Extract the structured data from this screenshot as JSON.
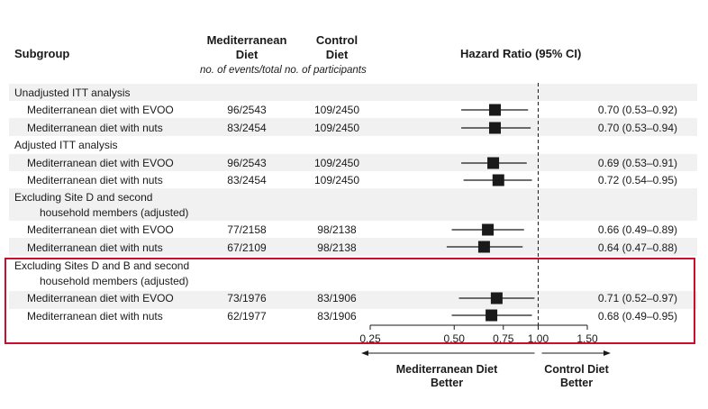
{
  "header": {
    "subgroup": "Subgroup",
    "med_line1": "Mediterranean",
    "med_line2": "Diet",
    "ctrl_line1": "Control",
    "ctrl_line2": "Diet",
    "hr_title": "Hazard Ratio (95% CI)",
    "subnote": "no. of events/total no. of participants"
  },
  "groups": [
    {
      "label_lines": [
        "Unadjusted ITT analysis"
      ]
    },
    {
      "label_lines": [
        "Adjusted ITT analysis"
      ]
    },
    {
      "label_lines": [
        "Excluding Site D and second",
        "household members (adjusted)"
      ]
    },
    {
      "label_lines": [
        "Excluding Sites D and B and second",
        "household members (adjusted)"
      ]
    }
  ],
  "rows": [
    {
      "label": "Mediterranean diet with EVOO",
      "med": "96/2543",
      "ctrl": "109/2450",
      "hr_text": "0.70 (0.53–0.92)"
    },
    {
      "label": "Mediterranean diet with nuts",
      "med": "83/2454",
      "ctrl": "109/2450",
      "hr_text": "0.70 (0.53–0.94)"
    },
    {
      "label": "Mediterranean diet with EVOO",
      "med": "96/2543",
      "ctrl": "109/2450",
      "hr_text": "0.69 (0.53–0.91)"
    },
    {
      "label": "Mediterranean diet with nuts",
      "med": "83/2454",
      "ctrl": "109/2450",
      "hr_text": "0.72 (0.54–0.95)"
    },
    {
      "label": "Mediterranean diet with EVOO",
      "med": "77/2158",
      "ctrl": "98/2138",
      "hr_text": "0.66 (0.49–0.89)"
    },
    {
      "label": "Mediterranean diet with nuts",
      "med": "67/2109",
      "ctrl": "98/2138",
      "hr_text": "0.64 (0.47–0.88)"
    },
    {
      "label": "Mediterranean diet with EVOO",
      "med": "73/1976",
      "ctrl": "83/1906",
      "hr_text": "0.71 (0.52–0.97)"
    },
    {
      "label": "Mediterranean diet with nuts",
      "med": "62/1977",
      "ctrl": "83/1906",
      "hr_text": "0.68 (0.49–0.95)"
    }
  ],
  "bottom": {
    "left_line1": "Mediterranean Diet",
    "left_line2": "Better",
    "right_line1": "Control Diet",
    "right_line2": "Better"
  },
  "colors": {
    "highlight": "#c8102e",
    "band": "#f1f1f1",
    "ink": "#1a1a1a"
  },
  "chart_data": {
    "type": "forest",
    "scale": "log",
    "reference_line": 1.0,
    "xlim": [
      0.25,
      1.5
    ],
    "ticks": [
      {
        "value": 0.25,
        "label": "0.25"
      },
      {
        "value": 0.5,
        "label": "0.50"
      },
      {
        "value": 0.75,
        "label": "0.75"
      },
      {
        "value": 1.0,
        "label": "1.00"
      },
      {
        "value": 1.5,
        "label": "1.50"
      }
    ],
    "points": [
      {
        "hr": 0.7,
        "lo": 0.53,
        "hi": 0.92
      },
      {
        "hr": 0.7,
        "lo": 0.53,
        "hi": 0.94
      },
      {
        "hr": 0.69,
        "lo": 0.53,
        "hi": 0.91
      },
      {
        "hr": 0.72,
        "lo": 0.54,
        "hi": 0.95
      },
      {
        "hr": 0.66,
        "lo": 0.49,
        "hi": 0.89
      },
      {
        "hr": 0.64,
        "lo": 0.47,
        "hi": 0.88
      },
      {
        "hr": 0.71,
        "lo": 0.52,
        "hi": 0.97
      },
      {
        "hr": 0.68,
        "lo": 0.49,
        "hi": 0.95
      }
    ]
  }
}
